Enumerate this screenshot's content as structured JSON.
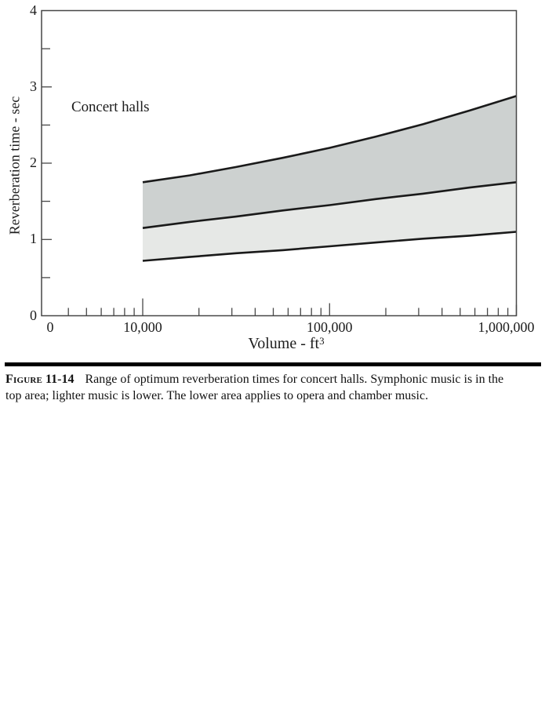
{
  "figure": {
    "caption": {
      "figure_word": "Figure",
      "figure_number": "11-14",
      "line1": "Range of optimum reverberation times for concert halls. Symphonic music is in the",
      "line2": "top area; lighter music is lower. The lower area applies to opera and chamber music."
    }
  },
  "chart_data": {
    "type": "area",
    "title": "",
    "annotation": "Concert halls",
    "xlabel": "Volume - ft³",
    "xlabel_base": "Volume - ft",
    "xlabel_superscript": "3",
    "ylabel": "Reverberation time - sec",
    "x_scale": "log",
    "xlim_labeled": [
      "0",
      "1,000,000"
    ],
    "ylim": [
      0,
      4
    ],
    "grid": false,
    "legend": "none",
    "x_tick_labels": [
      {
        "label": "0",
        "value": null
      },
      {
        "label": "10,000",
        "value": 10000
      },
      {
        "label": "100,000",
        "value": 100000
      },
      {
        "label": "1,000,000",
        "value": 1000000
      }
    ],
    "y_tick_labels": [
      {
        "label": "0",
        "value": 0
      },
      {
        "label": "1",
        "value": 1
      },
      {
        "label": "2",
        "value": 2
      },
      {
        "label": "3",
        "value": 3
      },
      {
        "label": "4",
        "value": 4
      }
    ],
    "x_minor_ticks": [
      4000,
      5000,
      6000,
      7000,
      8000,
      9000,
      20000,
      30000,
      40000,
      50000,
      60000,
      70000,
      80000,
      90000,
      200000,
      300000,
      400000,
      500000,
      600000,
      700000,
      800000,
      900000
    ],
    "x_major_ticks": [
      10000,
      100000,
      1000000
    ],
    "y_minor_ticks": [
      0.5,
      1.5,
      2.5,
      3.5
    ],
    "y_major_ticks": [
      1,
      2,
      3
    ],
    "series": [
      {
        "name": "symphonic-upper-limit",
        "points": [
          [
            10000,
            1.75
          ],
          [
            17800,
            1.84
          ],
          [
            31600,
            1.95
          ],
          [
            56200,
            2.07
          ],
          [
            100000,
            2.2
          ],
          [
            178000,
            2.35
          ],
          [
            316000,
            2.51
          ],
          [
            562000,
            2.69
          ],
          [
            1000000,
            2.88
          ]
        ]
      },
      {
        "name": "symphonic-lighter-boundary",
        "points": [
          [
            10000,
            1.15
          ],
          [
            17800,
            1.23
          ],
          [
            31600,
            1.3
          ],
          [
            56200,
            1.38
          ],
          [
            100000,
            1.45
          ],
          [
            178000,
            1.53
          ],
          [
            316000,
            1.6
          ],
          [
            562000,
            1.68
          ],
          [
            1000000,
            1.75
          ]
        ]
      },
      {
        "name": "opera-chamber-lower-limit",
        "points": [
          [
            10000,
            0.72
          ],
          [
            17800,
            0.77
          ],
          [
            31600,
            0.82
          ],
          [
            56200,
            0.86
          ],
          [
            100000,
            0.91
          ],
          [
            178000,
            0.96
          ],
          [
            316000,
            1.01
          ],
          [
            562000,
            1.05
          ],
          [
            1000000,
            1.1
          ]
        ]
      }
    ],
    "bands": [
      {
        "name": "symphonic-music-area",
        "upper": 0,
        "lower": 1,
        "fill": "#cdd1d0"
      },
      {
        "name": "opera-chamber-music-area",
        "upper": 1,
        "lower": 2,
        "fill": "#e6e8e6"
      }
    ],
    "colors": {
      "curve": "#1a1a1a",
      "frame": "#474747",
      "tick": "#474747",
      "text": "#1d1d1d",
      "band_symphonic": "#cdd1d0",
      "band_opera_chamber": "#e6e8e6"
    }
  }
}
